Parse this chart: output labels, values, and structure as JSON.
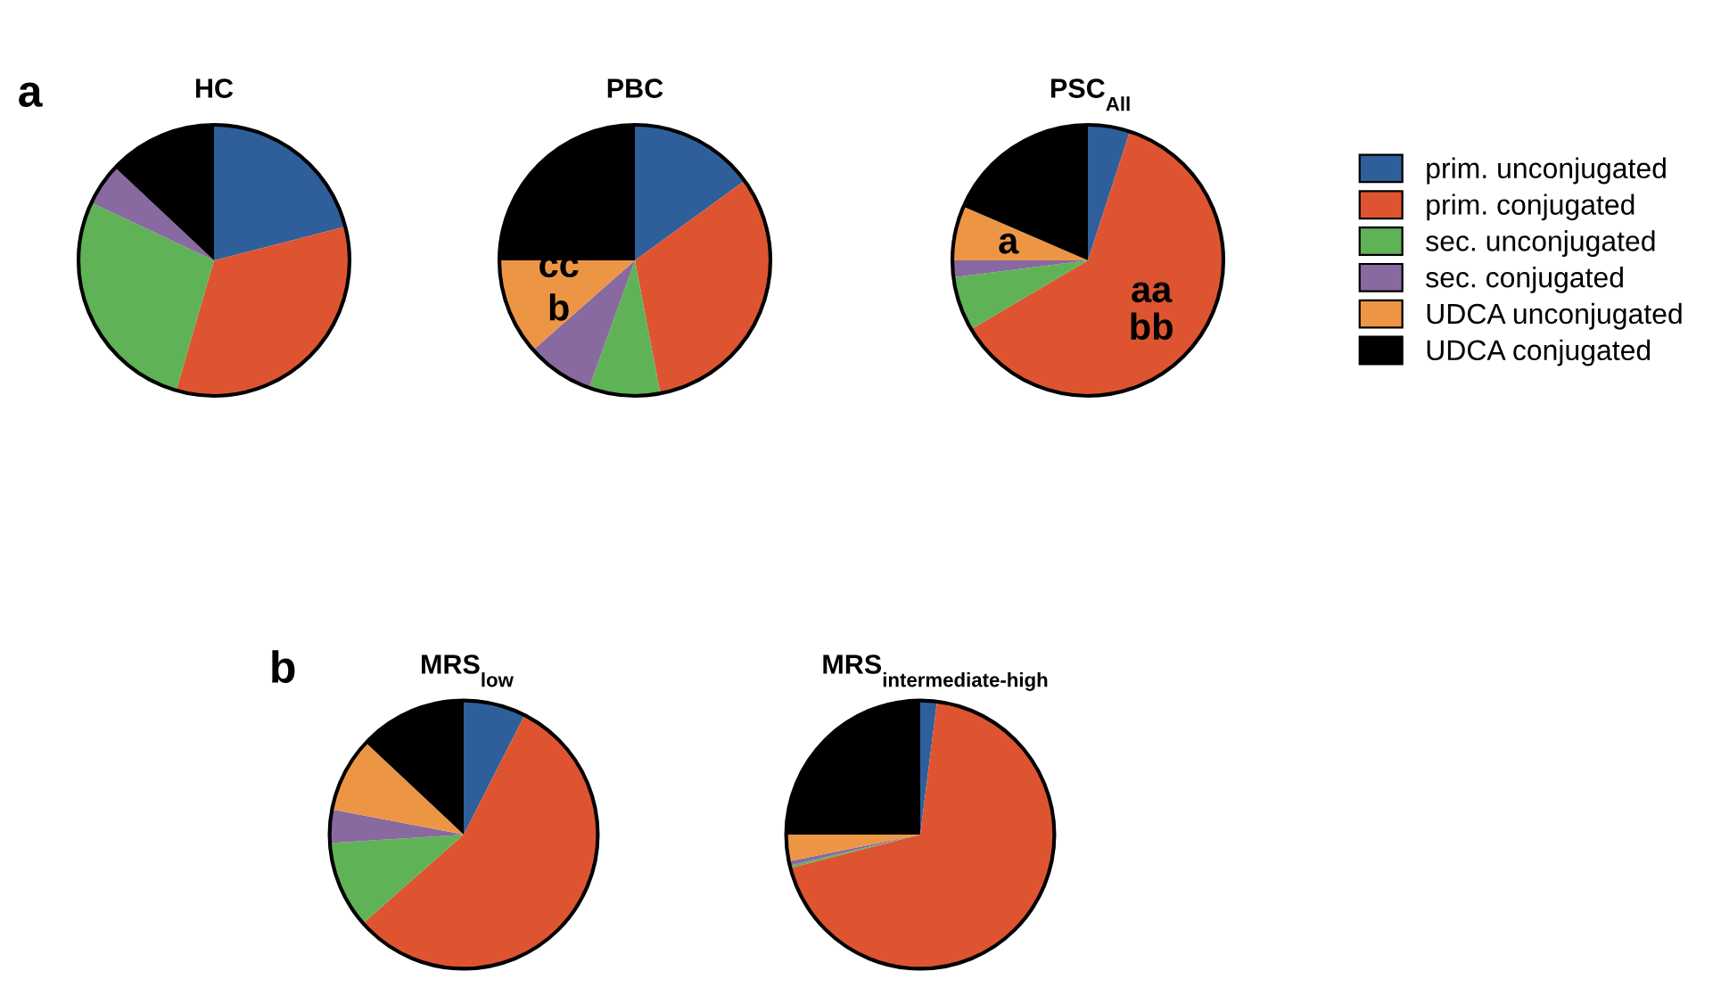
{
  "chart_data": [
    {
      "type": "pie",
      "title": "HC",
      "categories": [
        "prim. unconjugated",
        "prim. conjugated",
        "sec. unconjugated",
        "sec. conjugated",
        "UDCA unconjugated",
        "UDCA conjugated"
      ],
      "values": [
        21,
        33.5,
        27.5,
        5,
        0,
        13
      ],
      "colors": [
        "#2e5f9b",
        "#de5431",
        "#60b257",
        "#8869a0",
        "#ec9645",
        "#000000"
      ],
      "legend": "right",
      "annotations": [
        "a"
      ]
    },
    {
      "type": "pie",
      "title": "PBC",
      "categories": [
        null,
        null,
        null,
        null,
        null,
        null
      ],
      "values": [
        15,
        32,
        8.5,
        8,
        11.5,
        25
      ],
      "colors": [
        "#2e5f9b",
        "#de5431",
        "#60b257",
        "#8869a0",
        "#ec9645",
        "#000000"
      ],
      "annotations": [
        {
          "text": "cc",
          "x": "UDCA unconjugated"
        },
        {
          "text": "b",
          "x": "UDCA unconjugated"
        }
      ]
    },
    {
      "type": "pie",
      "title": "PSC$_{All}$",
      "categories": [
        null,
        null,
        null,
        null,
        null,
        null
      ],
      "values": [
        5,
        61.5,
        6.5,
        2,
        6.5,
        18.5
      ],
      "colors": [
        "#2e5f9b",
        "#de5431",
        "#60b257",
        "#8869a0",
        "#ec9645",
        "#000000"
      ],
      "annotations": [
        {
          "text": "aa\nbb",
          "x": "prim. conjugated"
        },
        {
          "text": "a",
          "x": "UDCA unconjugated"
        }
      ]
    },
    {
      "type": "pie",
      "title": "MRS$_{low}$",
      "categories": [
        null,
        null,
        null,
        null,
        null,
        null
      ],
      "values": [
        7.5,
        56,
        10.5,
        4,
        9,
        13
      ],
      "colors": [
        "#2e5f9b",
        "#de5431",
        "#60b257",
        "#8869a0",
        "#ec9645",
        "#000000"
      ],
      "annotations": [
        "b"
      ]
    },
    {
      "type": "pie",
      "title": "MRS$_{intermediate-high}$",
      "categories": [
        null,
        null,
        null,
        null,
        null,
        null
      ],
      "values": [
        2,
        69,
        0.3,
        0.5,
        3.2,
        25
      ],
      "colors": [
        "#2e5f9b",
        "#de5431",
        "#60b257",
        "#8869a0",
        "#ec9645",
        "#000000"
      ]
    }
  ]
}
